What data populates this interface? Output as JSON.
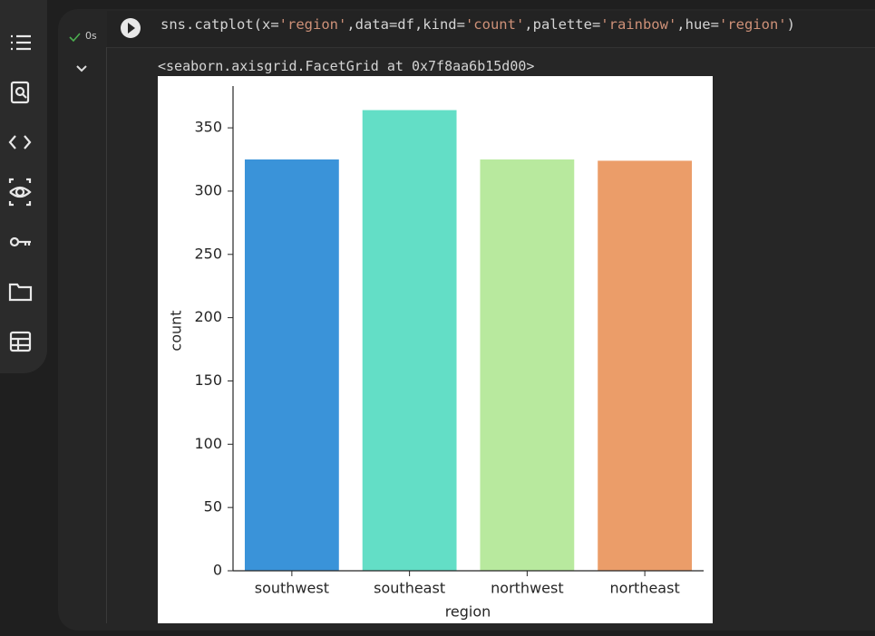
{
  "cell": {
    "status": "0s",
    "code": "sns.catplot(x='region',data=df,kind='count',palette='rainbow',hue='region')",
    "output": "<seaborn.axisgrid.FacetGrid at 0x7f8aa6b15d00>"
  },
  "chart_data": {
    "type": "bar",
    "x_label": "region",
    "y_label": "count",
    "categories": [
      "southwest",
      "southeast",
      "northwest",
      "northeast"
    ],
    "values": [
      325,
      364,
      325,
      324
    ],
    "colors": [
      "#3a93d9",
      "#63dec6",
      "#b8e99e",
      "#eb9d69"
    ],
    "ylim": [
      0,
      383
    ],
    "yticks": [
      0,
      50,
      100,
      150,
      200,
      250,
      300,
      350
    ],
    "grid": false
  }
}
